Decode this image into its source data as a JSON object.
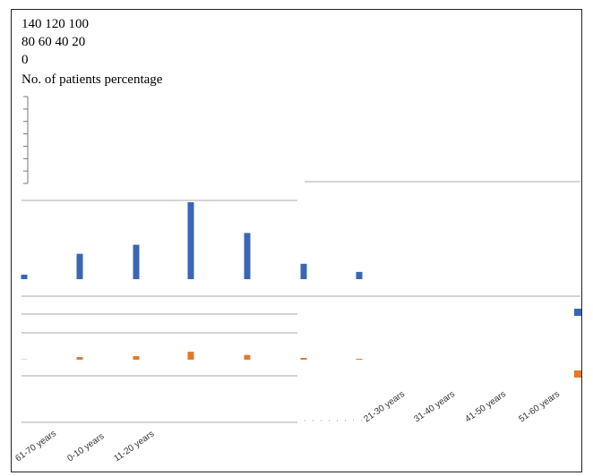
{
  "y_axis_text": {
    "line1": "140 120 100",
    "line2": "80 60 40 20",
    "line3": "0",
    "label": "No. of patients percentage"
  },
  "chart_data": {
    "type": "bar",
    "ylabel": "No. of patients percentage",
    "y_ticks": [
      "140",
      "120",
      "100",
      "80",
      "60",
      "40",
      "20",
      "0"
    ],
    "categories": [
      "61-70 years",
      "0-10 years",
      "11-20 years",
      "",
      "",
      "",
      "",
      "21-30 years",
      "31-40 years",
      "41-50 years",
      "51-60 years"
    ],
    "series": [
      {
        "color": "#3a66b3",
        "values": [
          5,
          28,
          38,
          85,
          51,
          17,
          8,
          0,
          0,
          0,
          8
        ]
      },
      {
        "color": "#e07a2b",
        "values": [
          1,
          9,
          12,
          27,
          16,
          6,
          3,
          0,
          0,
          0,
          8
        ]
      }
    ],
    "ylim": [
      0,
      140
    ],
    "grid": true,
    "legend": "none"
  }
}
